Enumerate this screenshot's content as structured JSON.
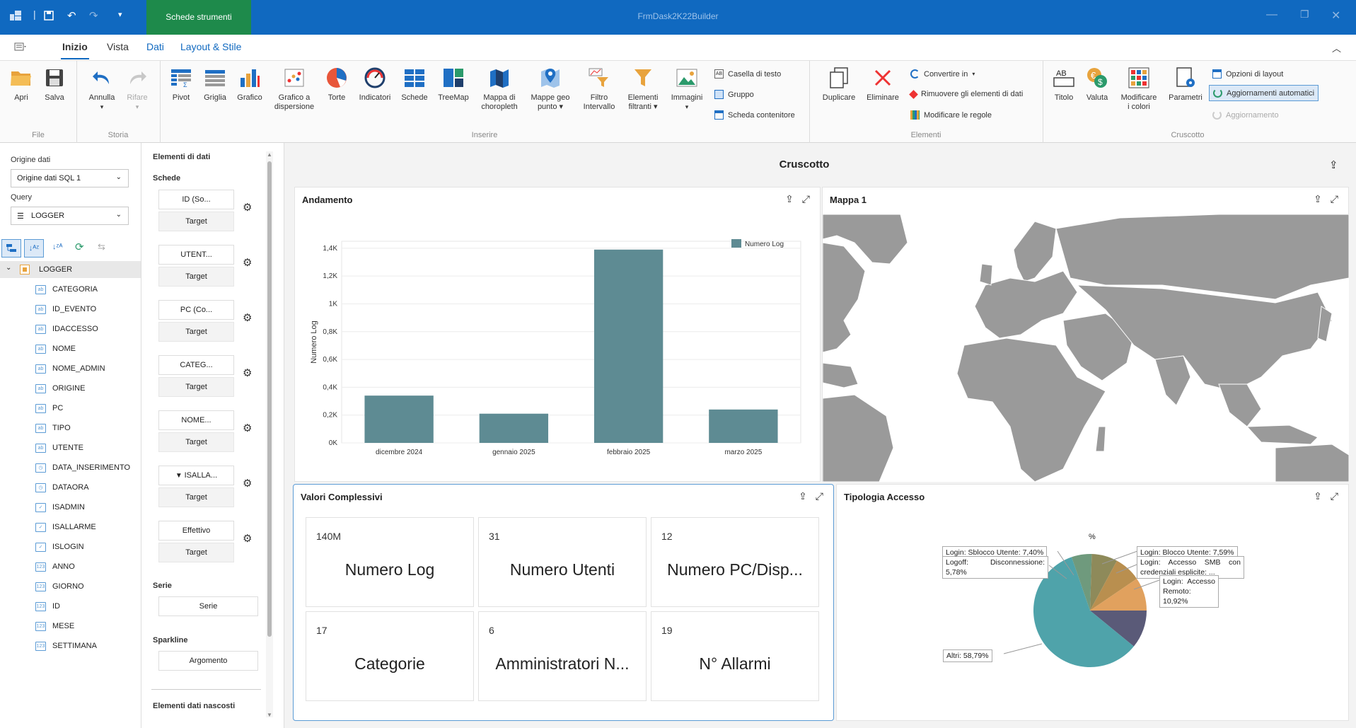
{
  "app": {
    "title": "FrmDask2K22Builder",
    "context_tab": "Schede strumenti"
  },
  "tabs": [
    "Inizio",
    "Vista",
    "Dati",
    "Layout & Stile"
  ],
  "ribbon": {
    "file": {
      "caption": "File",
      "open": "Apri",
      "save": "Salva"
    },
    "history": {
      "caption": "Storia",
      "undo": "Annulla",
      "redo": "Rifare"
    },
    "insert": {
      "caption": "Inserire",
      "items": [
        "Pivot",
        "Griglia",
        "Grafico",
        "Grafico a",
        "dispersione",
        "Torte",
        "Indicatori",
        "Schede",
        "TreeMap",
        "Mappa di",
        "choropleth",
        "Mappe geo",
        "punto",
        "Filtro",
        "Intervallo",
        "Elementi",
        "filtranti",
        "Immagini"
      ],
      "small": [
        "Casella di testo",
        "Gruppo",
        "Scheda contenitore"
      ]
    },
    "elements": {
      "caption": "Elementi",
      "duplicate": "Duplicare",
      "delete": "Eliminare",
      "small": [
        "Convertire in",
        "Rimuovere gli elementi di dati",
        "Modificare le regole"
      ]
    },
    "dashboard": {
      "caption": "Cruscotto",
      "title": "Titolo",
      "currency": "Valuta",
      "colors1": "Modificare",
      "colors2": "i colori",
      "params": "Parametri",
      "small": [
        "Opzioni di layout",
        "Aggiornamenti automatici",
        "Aggiornamento"
      ]
    }
  },
  "left": {
    "datasource_label": "Origine dati",
    "datasource_value": "Origine dati SQL 1",
    "query_label": "Query",
    "query_value": "LOGGER",
    "root": "LOGGER",
    "fields": [
      {
        "name": "CATEGORIA",
        "type": "ab"
      },
      {
        "name": "ID_EVENTO",
        "type": "ab"
      },
      {
        "name": "IDACCESSO",
        "type": "ab"
      },
      {
        "name": "NOME",
        "type": "ab"
      },
      {
        "name": "NOME_ADMIN",
        "type": "ab"
      },
      {
        "name": "ORIGINE",
        "type": "ab"
      },
      {
        "name": "PC",
        "type": "ab"
      },
      {
        "name": "TIPO",
        "type": "ab"
      },
      {
        "name": "UTENTE",
        "type": "ab"
      },
      {
        "name": "DATA_INSERIMENTO",
        "type": "date"
      },
      {
        "name": "DATAORA",
        "type": "date"
      },
      {
        "name": "ISADMIN",
        "type": "bool"
      },
      {
        "name": "ISALLARME",
        "type": "bool"
      },
      {
        "name": "ISLOGIN",
        "type": "bool"
      },
      {
        "name": "ANNO",
        "type": "123"
      },
      {
        "name": "GIORNO",
        "type": "123"
      },
      {
        "name": "ID",
        "type": "123"
      },
      {
        "name": "MESE",
        "type": "123"
      },
      {
        "name": "SETTIMANA",
        "type": "123"
      }
    ]
  },
  "mid": {
    "title": "Elementi di dati",
    "cards_label": "Schede",
    "slots": [
      {
        "main": "ID (So...",
        "sec": "Target"
      },
      {
        "main": "UTENT...",
        "sec": "Target"
      },
      {
        "main": "PC (Co...",
        "sec": "Target"
      },
      {
        "main": "CATEG...",
        "sec": "Target"
      },
      {
        "main": "NOME...",
        "sec": "Target"
      },
      {
        "main": "ISALLA...",
        "sec": "Target",
        "filter": true
      },
      {
        "main": "Effettivo",
        "sec": "Target"
      }
    ],
    "series_label": "Serie",
    "series_value": "Serie",
    "sparkline_label": "Sparkline",
    "sparkline_value": "Argomento",
    "hidden_label": "Elementi dati nascosti"
  },
  "dashboard": {
    "title": "Cruscotto",
    "andamento": {
      "title": "Andamento"
    },
    "map": {
      "title": "Mappa 1"
    },
    "kpis": {
      "title": "Valori Complessivi",
      "items": [
        {
          "value": "140M",
          "name": "Numero Log"
        },
        {
          "value": "31",
          "name": "Numero Utenti"
        },
        {
          "value": "12",
          "name": "Numero PC/Disp..."
        },
        {
          "value": "17",
          "name": "Categorie"
        },
        {
          "value": "6",
          "name": "Amministratori N..."
        },
        {
          "value": "19",
          "name": "N° Allarmi"
        }
      ]
    },
    "pie": {
      "title": "Tipologia Accesso",
      "subtitle": "%",
      "labels": [
        "Login: Sblocco Utente: 7,40%",
        "Logoff: Disconnessione: 5,78%",
        "Login: Blocco Utente: 7,59%",
        "Login: Accesso SMB con credenziali esplicite: ...",
        "Login: Accesso Remoto: 10,92%",
        "Altri: 58,79%"
      ]
    }
  },
  "chart_data": [
    {
      "type": "bar",
      "title": "Andamento",
      "categories": [
        "dicembre 2024",
        "gennaio 2025",
        "febbraio 2025",
        "marzo 2025"
      ],
      "series": [
        {
          "name": "Numero Log",
          "values": [
            340,
            210,
            1390,
            240
          ]
        }
      ],
      "ylabel": "Numero Log",
      "xlabel": "",
      "ylim": [
        0,
        1450
      ],
      "yticks": [
        0,
        200,
        400,
        600,
        800,
        1000,
        1200,
        1400
      ],
      "ytick_labels": [
        "0K",
        "0,2K",
        "0,4K",
        "0,6K",
        "0,8K",
        "1K",
        "1,2K",
        "1,4K"
      ],
      "legend": "top-right",
      "color": "#5e8b93"
    },
    {
      "type": "pie",
      "title": "Tipologia Accesso",
      "slices": [
        {
          "label": "Login: Accesso Remoto",
          "value": 10.92,
          "color": "#5a5a78"
        },
        {
          "label": "Altri",
          "value": 58.79,
          "color": "#4fa3aa"
        },
        {
          "label": "Logoff: Disconnessione",
          "value": 5.78,
          "color": "#6f9a7d"
        },
        {
          "label": "Login: Sblocco Utente",
          "value": 7.4,
          "color": "#8e8a5a"
        },
        {
          "label": "Login: Blocco Utente",
          "value": 7.59,
          "color": "#b98f4f"
        },
        {
          "label": "Login: Accesso SMB con credenziali esplicite",
          "value": 9.52,
          "color": "#e1a15e"
        }
      ]
    }
  ]
}
